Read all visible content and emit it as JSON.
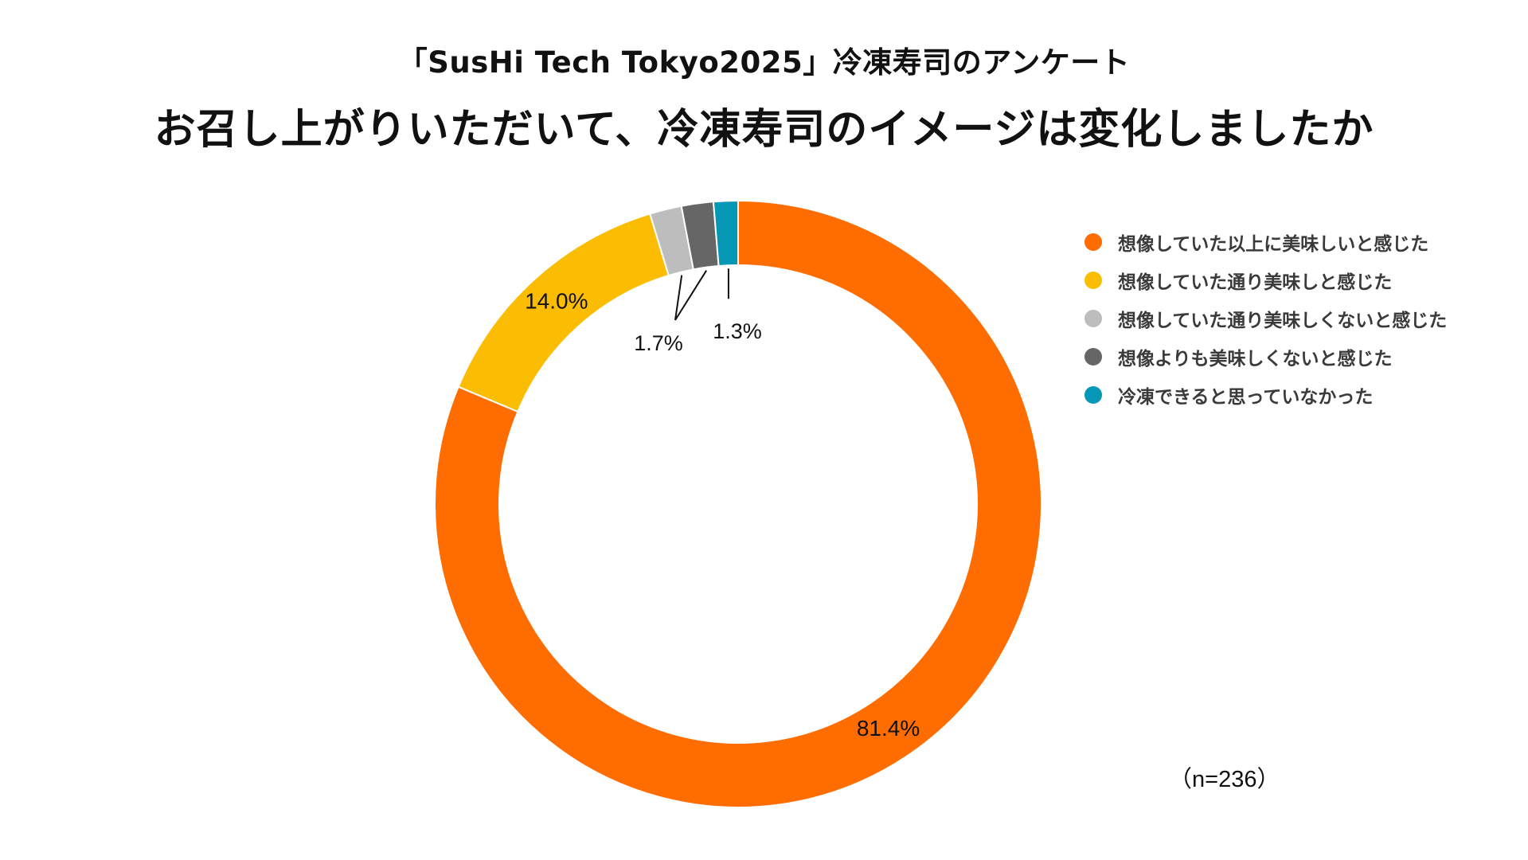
{
  "chart_data": {
    "type": "pie",
    "style": "donut",
    "subtitle": "「SusHi Tech Tokyo2025」冷凍寿司のアンケート",
    "title": "お召し上がりいただいて、冷凍寿司のイメージは変化しましたか",
    "slices": [
      {
        "label": "想像していた以上に美味しいと感じた",
        "value": 81.4,
        "value_label": "81.4%",
        "color": "#ff6d01"
      },
      {
        "label": "想像していた通り美味しと感じた",
        "value": 14.0,
        "value_label": "14.0%",
        "color": "#fbbc04"
      },
      {
        "label": "想像していた通り美味しくないと感じた",
        "value": 1.7,
        "value_label": "1.7%",
        "color": "#bdbdbd"
      },
      {
        "label": "想像よりも美味しくないと感じた",
        "value": 1.7,
        "value_label": "",
        "color": "#666666"
      },
      {
        "label": "冷凍できると思っていなかった",
        "value": 1.3,
        "value_label": "1.3%",
        "color": "#0597b5"
      }
    ],
    "legend_position": "right",
    "sample_size": "（n=236）"
  }
}
